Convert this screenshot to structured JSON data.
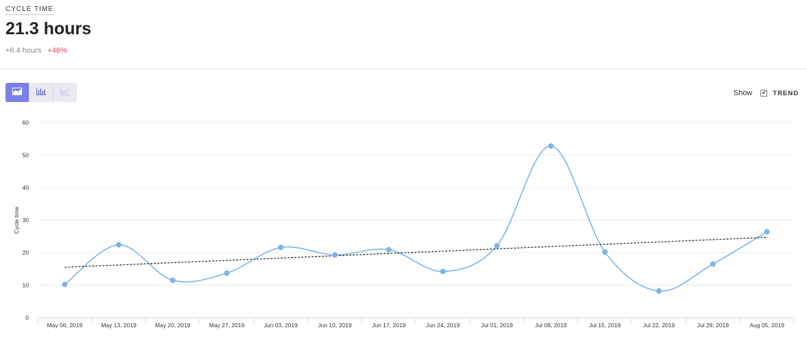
{
  "metric": {
    "label": "CYCLE TIME",
    "value": "21.3 hours",
    "delta_abs": "+6.4 hours",
    "delta_pct": "+46%"
  },
  "view_buttons": [
    {
      "icon": "area-chart-icon",
      "active": true
    },
    {
      "icon": "bar-chart-icon",
      "active": false
    },
    {
      "icon": "scatter-chart-icon",
      "active": false
    }
  ],
  "trend_toggle": {
    "show_label": "Show",
    "checked_mark": "✔",
    "label": "TREND"
  },
  "colors": {
    "accent": "#7b80e8",
    "series": "#7cb4ea",
    "trend": "#333333",
    "negative_delta": "#e0455b"
  },
  "chart_data": {
    "type": "line",
    "ylabel": "Cycle time",
    "xlabel": "",
    "ylim": [
      0,
      60
    ],
    "y_ticks": [
      0,
      10,
      20,
      30,
      40,
      50,
      60
    ],
    "grid": true,
    "smooth": true,
    "categories": [
      "May 06, 2019",
      "May 13, 2019",
      "May 20, 2019",
      "May 27, 2019",
      "Jun 03, 2019",
      "Jun 10, 2019",
      "Jun 17, 2019",
      "Jun 24, 2019",
      "Jul 01, 2019",
      "Jul 08, 2019",
      "Jul 15, 2019",
      "Jul 22, 2019",
      "Jul 29, 2019",
      "Aug 05, 2019"
    ],
    "series": [
      {
        "values": [
          10.2,
          22.4,
          11.5,
          13.7,
          21.6,
          19.3,
          20.9,
          14.2,
          22.1,
          52.8,
          20.2,
          8.2,
          16.5,
          26.4
        ]
      }
    ],
    "trend": {
      "start": 15.5,
      "end": 24.7
    }
  }
}
